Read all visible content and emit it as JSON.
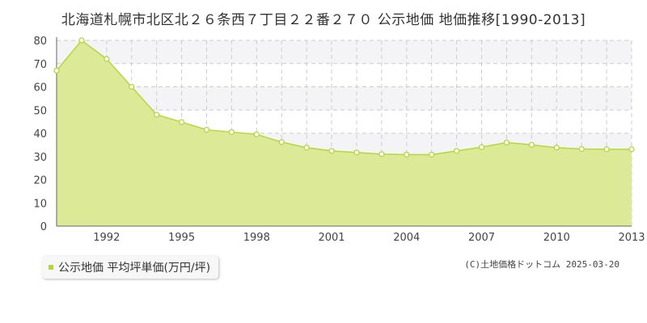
{
  "chart_data": {
    "type": "area",
    "title": "北海道札幌市北区北２６条西７丁目２２番２７０ 公示地価 地価推移[1990-2013]",
    "x": [
      1990,
      1991,
      1992,
      1993,
      1994,
      1995,
      1996,
      1997,
      1998,
      1999,
      2000,
      2001,
      2002,
      2003,
      2004,
      2005,
      2006,
      2007,
      2008,
      2009,
      2010,
      2011,
      2012,
      2013
    ],
    "series": [
      {
        "name": "公示地価 平均坪単価(万円/坪)",
        "values": [
          67,
          80,
          72,
          60,
          48,
          44.8,
          41.5,
          40.5,
          39.5,
          36.2,
          33.8,
          32.4,
          31.7,
          31,
          30.8,
          30.8,
          32.4,
          34,
          36,
          35,
          33.8,
          33.2,
          33.1,
          33.1
        ]
      }
    ],
    "x_tick_labels": [
      "1992",
      "1995",
      "1998",
      "2001",
      "2004",
      "2007",
      "2010",
      "2013"
    ],
    "y_tick_labels": [
      "0",
      "10",
      "20",
      "30",
      "40",
      "50",
      "60",
      "70",
      "80"
    ],
    "ylim": [
      0,
      80
    ],
    "xlim": [
      1990,
      2013
    ],
    "grid": true,
    "legend_position": "bottom-left",
    "colors": {
      "fill": "#dcea98",
      "line": "#b5d63c",
      "marker_fill": "#ffffff",
      "grid": "#cccccc",
      "band": "#f4f4f6"
    }
  },
  "legend": {
    "label": "公示地価 平均坪単価(万円/坪)"
  },
  "copyright": "(C)土地価格ドットコム 2025-03-20"
}
